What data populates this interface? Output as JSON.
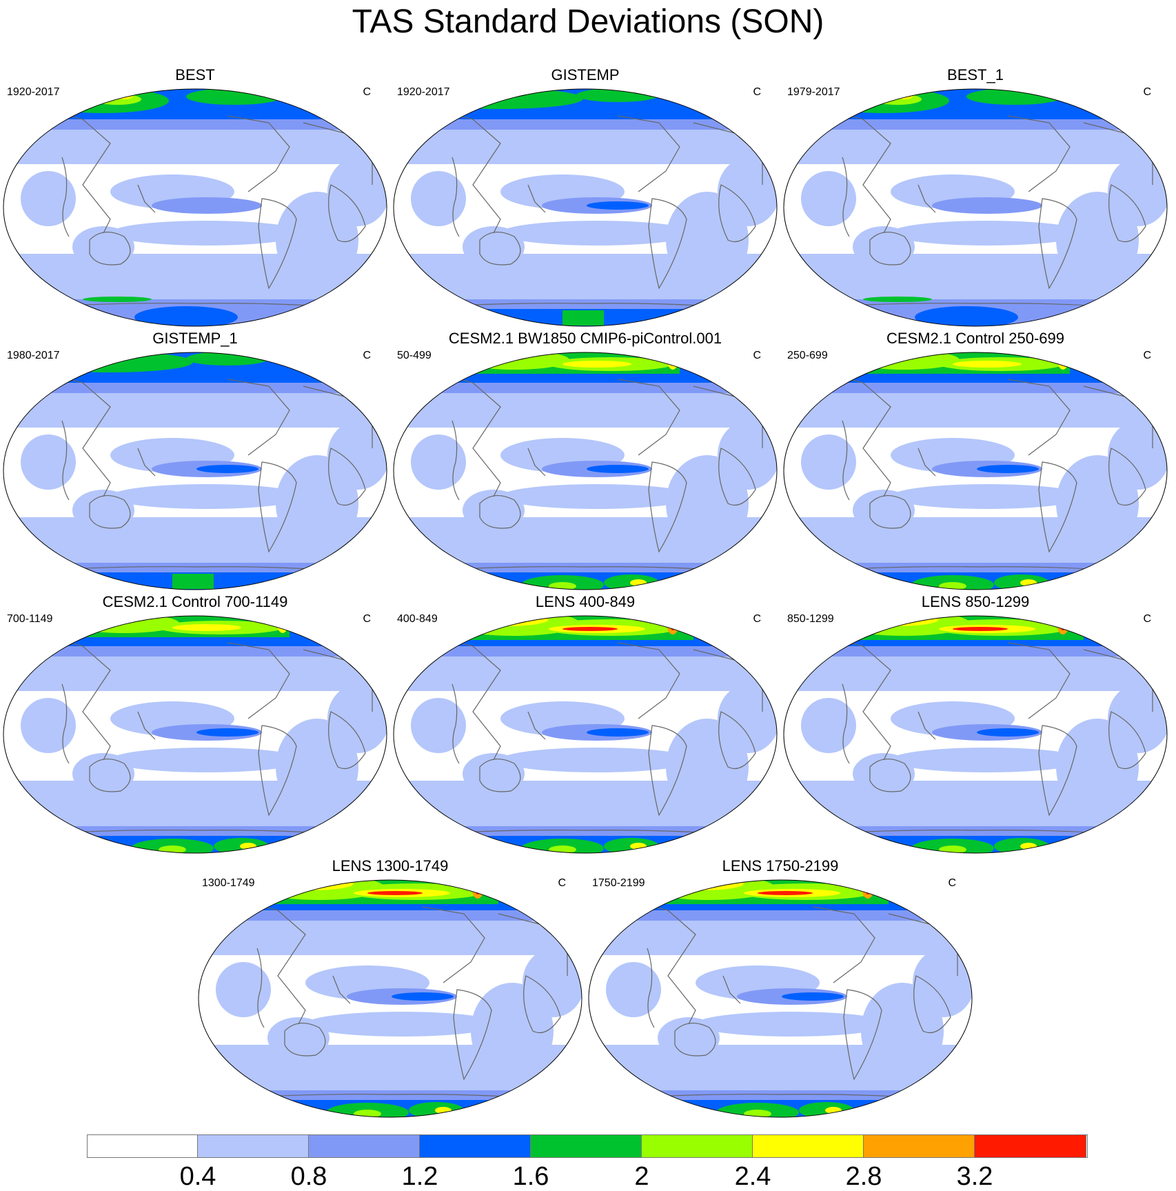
{
  "title": "TAS Standard Deviations (SON)",
  "panels": [
    {
      "title": "BEST",
      "left": "1920-2017",
      "right": "C"
    },
    {
      "title": "GISTEMP",
      "left": "1920-2017",
      "right": "C"
    },
    {
      "title": "BEST_1",
      "left": "1979-2017",
      "right": "C"
    },
    {
      "title": "GISTEMP_1",
      "left": "1980-2017",
      "right": "C"
    },
    {
      "title": "CESM2.1 BW1850 CMIP6-piControl.001",
      "left": "50-499",
      "right": "C"
    },
    {
      "title": "CESM2.1 Control 250-699",
      "left": "250-699",
      "right": "C"
    },
    {
      "title": "CESM2.1 Control 700-1149",
      "left": "700-1149",
      "right": "C"
    },
    {
      "title": "LENS 400-849",
      "left": "400-849",
      "right": "C"
    },
    {
      "title": "LENS 850-1299",
      "left": "850-1299",
      "right": "C"
    },
    {
      "title": "LENS 1300-1749",
      "left": "1300-1749",
      "right": "C"
    },
    {
      "title": "LENS 1750-2199",
      "left": "1750-2199",
      "right": "C"
    }
  ],
  "colorbar": {
    "colors": [
      "#ffffff",
      "#b4c6fb",
      "#8199f6",
      "#0060ff",
      "#00c22e",
      "#99ff00",
      "#ffff00",
      "#ffa100",
      "#ff1a00"
    ],
    "labels": [
      "0.4",
      "0.8",
      "1.2",
      "1.6",
      "2",
      "2.4",
      "2.8",
      "3.2"
    ]
  }
}
